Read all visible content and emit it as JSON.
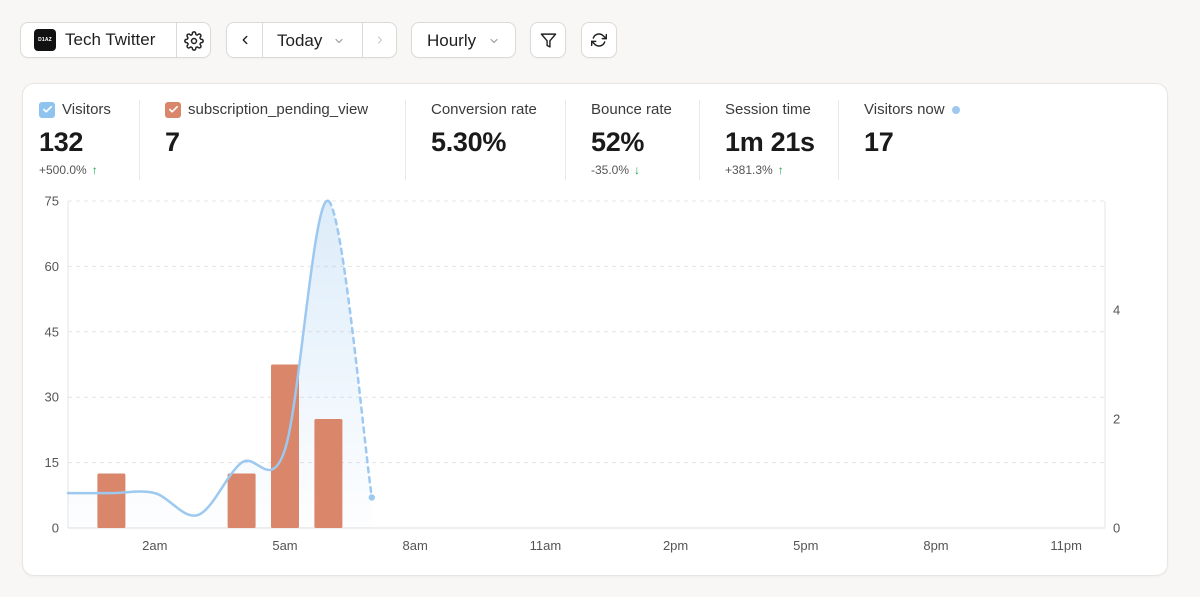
{
  "header": {
    "site": {
      "logo_text": "D1AZ",
      "name": "Tech Twitter"
    },
    "date": {
      "label": "Today"
    },
    "interval": {
      "label": "Hourly"
    }
  },
  "stats": [
    {
      "label": "Visitors",
      "value": "132",
      "change": "+500.0%",
      "direction": "up",
      "checkbox": "blue"
    },
    {
      "label": "subscription_pending_view",
      "value": "7",
      "checkbox": "orange"
    },
    {
      "label": "Conversion rate",
      "value": "5.30%"
    },
    {
      "label": "Bounce rate",
      "value": "52%",
      "change": "-35.0%",
      "direction": "down"
    },
    {
      "label": "Session time",
      "value": "1m 21s",
      "change": "+381.3%",
      "direction": "up"
    },
    {
      "label": "Visitors now",
      "value": "17",
      "live": true
    }
  ],
  "colors": {
    "visitors_line": "#9dc9f0",
    "events_bar": "#d9866a",
    "positive_change": "#1aa34a"
  },
  "chart_data": {
    "type": "bar",
    "x_tick_labels": [
      "2am",
      "5am",
      "8am",
      "11am",
      "2pm",
      "5pm",
      "8pm",
      "11pm"
    ],
    "y_left_ticks": [
      "0",
      "15",
      "30",
      "45",
      "60",
      "75"
    ],
    "y_right_ticks": [
      "0",
      "2",
      "4"
    ],
    "ylim_left": [
      0,
      75
    ],
    "ylim_right": [
      0,
      6
    ],
    "grid": true,
    "series": [
      {
        "name": "Visitors",
        "kind": "line",
        "axis": "left",
        "hours": [
          0,
          1,
          2,
          3,
          4,
          5,
          6,
          7
        ],
        "values": [
          8,
          8,
          8,
          3,
          15,
          18,
          75,
          7
        ],
        "dashed_from_hour": 6
      },
      {
        "name": "subscription_pending_view",
        "kind": "bar",
        "axis": "right",
        "hours": [
          1,
          4,
          5,
          6
        ],
        "values": [
          1,
          1,
          3,
          2
        ]
      }
    ]
  }
}
